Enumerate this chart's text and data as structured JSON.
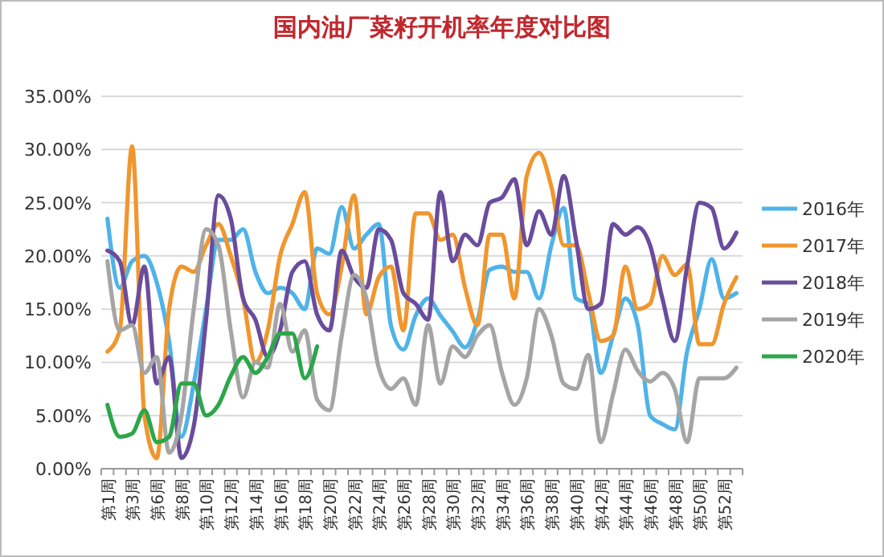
{
  "chart_data": {
    "type": "line",
    "title": "国内油厂菜籽开机率年度对比图",
    "categories": [
      "第1周",
      null,
      "第3周",
      null,
      "第6周",
      null,
      "第8周",
      null,
      "第10周",
      null,
      "第12周",
      null,
      "第14周",
      null,
      "第16周",
      null,
      "第18周",
      null,
      "第20周",
      null,
      "第22周",
      null,
      "第24周",
      null,
      "第26周",
      null,
      "第28周",
      null,
      "第30周",
      null,
      "第32周",
      null,
      "第34周",
      null,
      "第36周",
      null,
      "第38周",
      null,
      "第40周",
      null,
      "第42周",
      null,
      "第44周",
      null,
      "第46周",
      null,
      "第48周",
      null,
      "第50周",
      null,
      "第52周",
      null
    ],
    "series": [
      {
        "name": "2016年",
        "color": "#4fb3e8",
        "values": [
          23.5,
          17,
          19.5,
          20,
          17.5,
          12,
          3,
          8,
          15,
          21.5,
          21.5,
          22.5,
          18.5,
          16.5,
          17,
          16.5,
          15,
          20.7,
          20.2,
          24.6,
          20.7,
          22,
          23,
          13.4,
          11.2,
          14.4,
          16,
          14.4,
          12.9,
          11.4,
          13.9,
          18.7,
          19,
          18.5,
          18.5,
          16,
          21,
          24.5,
          16,
          15.5,
          9,
          12.5,
          16,
          13.5,
          5,
          4.2,
          3.7,
          11,
          15,
          19.7,
          16,
          16.5
        ]
      },
      {
        "name": "2017年",
        "color": "#f0962e",
        "values": [
          11,
          13,
          30.3,
          5,
          1,
          15,
          19,
          18.5,
          21,
          23,
          20,
          16,
          10,
          13,
          20,
          23,
          26,
          16.5,
          14.5,
          19,
          25.7,
          14.5,
          18,
          19,
          13,
          24,
          24,
          21.5,
          22,
          17,
          13.5,
          22,
          22,
          16,
          27.5,
          29.7,
          26.5,
          21,
          21,
          16.5,
          12,
          12.5,
          19,
          15,
          15.5,
          20,
          18.2,
          19.2,
          11.7,
          11.7,
          15.5,
          18
        ]
      },
      {
        "name": "2018年",
        "color": "#6a4c9c",
        "values": [
          20.5,
          19.5,
          13.5,
          19,
          8,
          10.5,
          1,
          4,
          14,
          25.7,
          23.5,
          16,
          14,
          10.5,
          13,
          18.5,
          19.5,
          14.5,
          13,
          20.5,
          18,
          17,
          22.5,
          21.5,
          16.5,
          15.5,
          14,
          26,
          19.5,
          22,
          21,
          25,
          25.5,
          27.2,
          21,
          24.2,
          22,
          27.5,
          21.5,
          15,
          15.5,
          23,
          22,
          22.7,
          21,
          16,
          12,
          19,
          25,
          24.5,
          20.7,
          22.2
        ]
      },
      {
        "name": "2019年",
        "color": "#a5a5a5",
        "values": [
          19.5,
          13,
          13.5,
          9,
          10.5,
          1.5,
          5,
          15,
          22.5,
          21,
          13,
          6.7,
          10,
          9.5,
          15.5,
          11,
          13,
          6.5,
          5.5,
          12.5,
          18.2,
          16,
          9.5,
          7.5,
          8.5,
          6,
          13.5,
          8,
          11.5,
          10.5,
          12.5,
          13.5,
          9,
          6,
          8.5,
          15,
          12.5,
          8,
          7.5,
          10.7,
          2.5,
          7,
          11.2,
          9.2,
          8.2,
          9,
          7.5,
          2.5,
          8.5,
          8.5,
          8.5,
          9.5
        ]
      },
      {
        "name": "2020年",
        "color": "#2ca64a",
        "values": [
          6,
          3,
          3.3,
          5.5,
          2.5,
          3,
          8,
          8,
          5,
          6,
          8.7,
          10.5,
          9,
          10.5,
          12.7,
          12.7,
          8.5,
          11.5,
          null,
          null,
          null,
          null,
          null,
          null,
          null,
          null,
          null,
          null,
          null,
          null,
          null,
          null,
          null,
          null,
          null,
          null,
          null,
          null,
          null,
          null,
          null,
          null,
          null,
          null,
          null,
          null,
          null,
          null,
          null,
          null,
          null,
          null
        ]
      }
    ],
    "ylim": [
      0,
      35
    ],
    "yticks": [
      {
        "value": 0,
        "label": "0.00%"
      },
      {
        "value": 5,
        "label": "5.00%"
      },
      {
        "value": 10,
        "label": "10.00%"
      },
      {
        "value": 15,
        "label": "15.00%"
      },
      {
        "value": 20,
        "label": "20.00%"
      },
      {
        "value": 25,
        "label": "25.00%"
      },
      {
        "value": 30,
        "label": "30.00%"
      },
      {
        "value": 35,
        "label": "35.00%"
      }
    ],
    "grid": "y",
    "legend": "right",
    "marker": "none",
    "line_style": "solid"
  }
}
